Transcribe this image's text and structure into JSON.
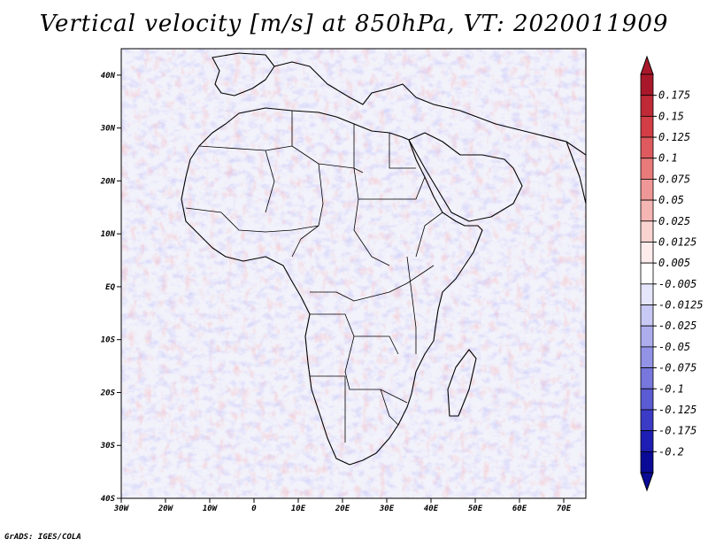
{
  "title": "Vertical velocity [m/s] at 850hPa, VT: 2020011909",
  "footer": "GrADS: IGES/COLA",
  "map": {
    "lon_range": [
      -30,
      75
    ],
    "lat_range": [
      -40,
      45
    ],
    "lon_ticks": [
      {
        "value": -30,
        "label": "30W"
      },
      {
        "value": -20,
        "label": "20W"
      },
      {
        "value": -10,
        "label": "10W"
      },
      {
        "value": 0,
        "label": "0"
      },
      {
        "value": 10,
        "label": "10E"
      },
      {
        "value": 20,
        "label": "20E"
      },
      {
        "value": 30,
        "label": "30E"
      },
      {
        "value": 40,
        "label": "40E"
      },
      {
        "value": 50,
        "label": "50E"
      },
      {
        "value": 60,
        "label": "60E"
      },
      {
        "value": 70,
        "label": "70E"
      }
    ],
    "lat_ticks": [
      {
        "value": 40,
        "label": "40N"
      },
      {
        "value": 30,
        "label": "30N"
      },
      {
        "value": 20,
        "label": "20N"
      },
      {
        "value": 10,
        "label": "10N"
      },
      {
        "value": 0,
        "label": "EQ"
      },
      {
        "value": -10,
        "label": "10S"
      },
      {
        "value": -20,
        "label": "20S"
      },
      {
        "value": -30,
        "label": "30S"
      },
      {
        "value": -40,
        "label": "40S"
      }
    ]
  },
  "colorbar": {
    "labels": [
      "0.175",
      "0.15",
      "0.125",
      "0.1",
      "0.075",
      "0.05",
      "0.025",
      "0.0125",
      "0.005",
      "-0.005",
      "-0.0125",
      "-0.025",
      "-0.05",
      "-0.075",
      "-0.1",
      "-0.125",
      "-0.175",
      "-0.2"
    ],
    "colors": [
      "#a8182a",
      "#bf2a36",
      "#d23d46",
      "#de5a5e",
      "#e87a7a",
      "#ef9797",
      "#f5b5b3",
      "#f9d3d0",
      "#fdeceb",
      "#ffffff",
      "#e5e5fb",
      "#c9c9f5",
      "#adadee",
      "#9292e6",
      "#7777dd",
      "#5b5bd3",
      "#3b3bc6",
      "#1e1eb4",
      "#0a0a96"
    ]
  }
}
